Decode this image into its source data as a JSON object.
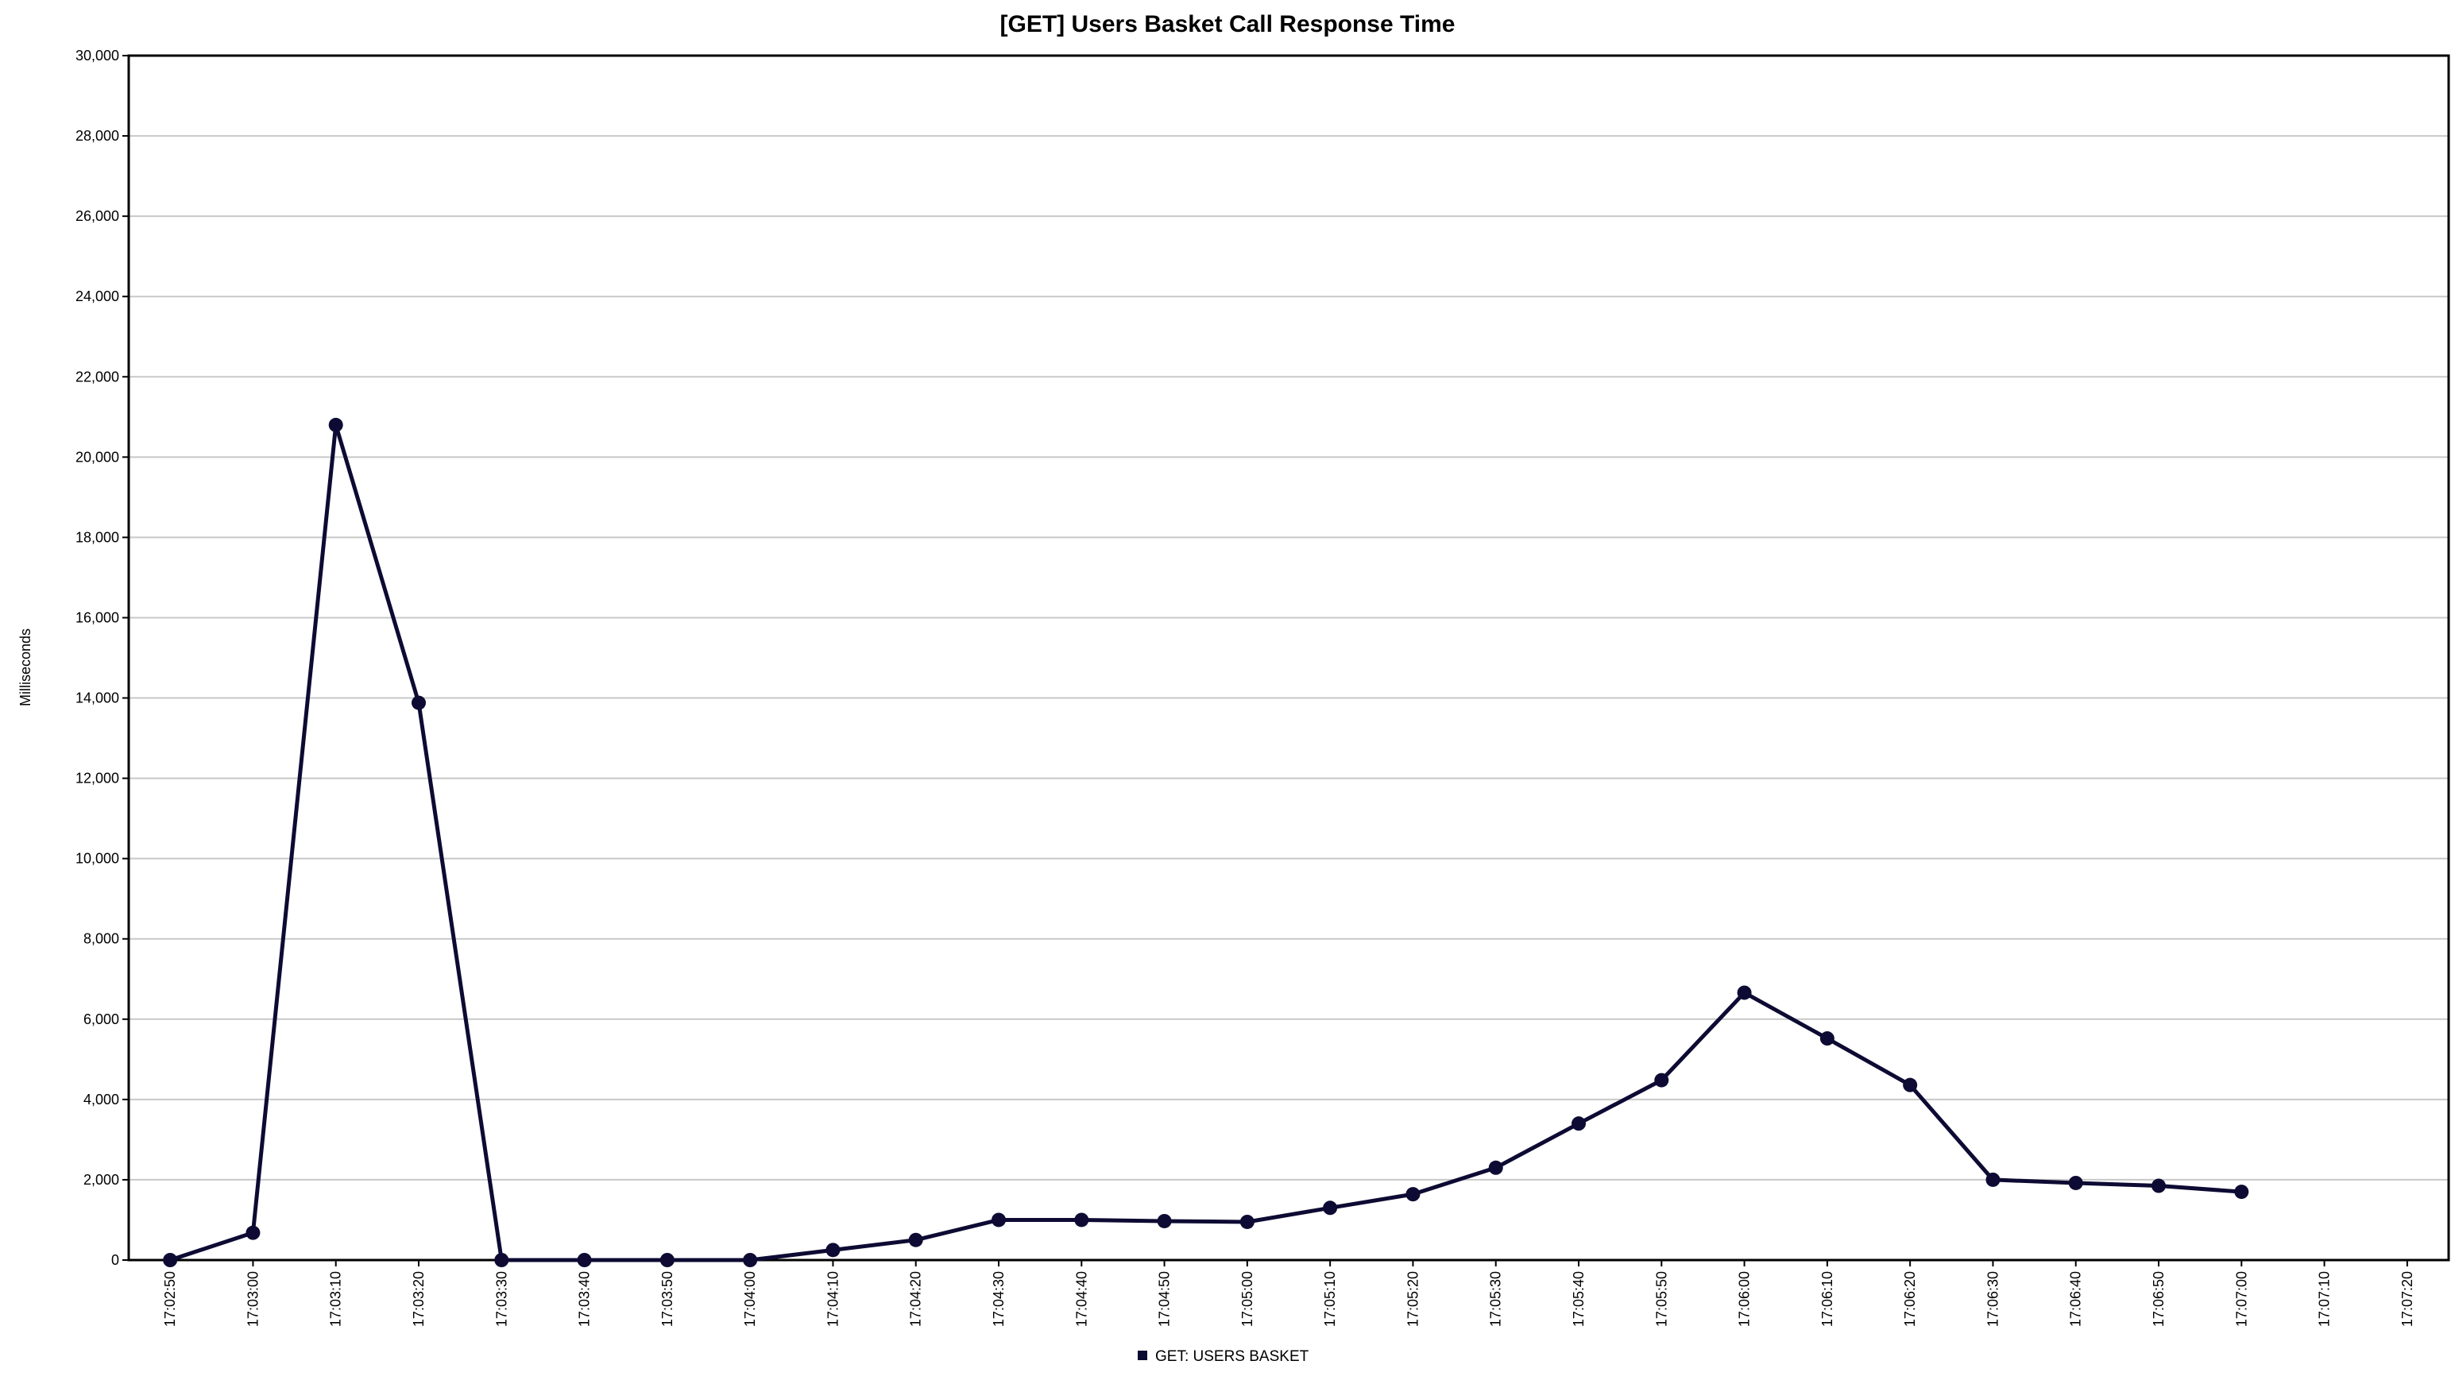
{
  "chart_data": {
    "type": "line",
    "title": "[GET] Users Basket Call Response Time",
    "xlabel": "",
    "ylabel": "Milliseconds",
    "ylim": [
      0,
      30000
    ],
    "yticks": [
      "0",
      "2,000",
      "4,000",
      "6,000",
      "8,000",
      "10,000",
      "12,000",
      "14,000",
      "16,000",
      "18,000",
      "20,000",
      "22,000",
      "24,000",
      "26,000",
      "28,000",
      "30,000"
    ],
    "categories": [
      "17:02:50",
      "17:03:00",
      "17:03:10",
      "17:03:20",
      "17:03:30",
      "17:03:40",
      "17:03:50",
      "17:04:00",
      "17:04:10",
      "17:04:20",
      "17:04:30",
      "17:04:40",
      "17:04:50",
      "17:05:00",
      "17:05:10",
      "17:05:20",
      "17:05:30",
      "17:05:40",
      "17:05:50",
      "17:06:00",
      "17:06:10",
      "17:06:20",
      "17:06:30",
      "17:06:40",
      "17:06:50",
      "17:07:00",
      "17:07:10",
      "17:07:20"
    ],
    "series": [
      {
        "name": "GET: USERS BASKET",
        "color": "#0d0b33",
        "values": [
          0,
          680,
          20800,
          13880,
          0,
          0,
          0,
          0,
          250,
          500,
          1000,
          1000,
          970,
          950,
          1300,
          1640,
          2300,
          3400,
          4480,
          6660,
          5520,
          4360,
          2000,
          1920,
          1850,
          1700,
          null,
          null
        ]
      }
    ],
    "grid": true,
    "legend_position": "bottom-center"
  }
}
